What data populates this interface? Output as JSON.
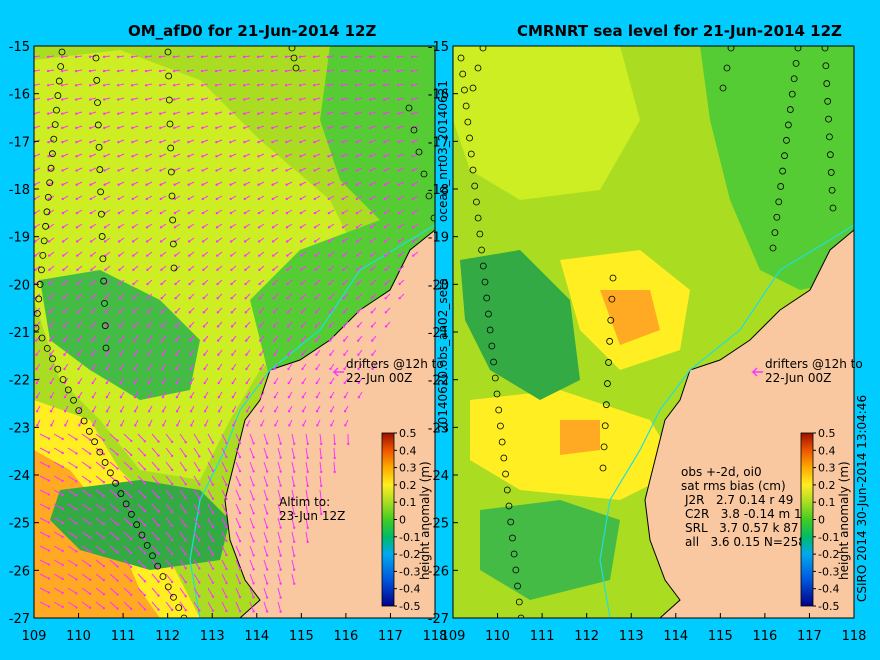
{
  "colors": {
    "background": "#00ccff",
    "land": "#fac8a0",
    "coast": "#000000",
    "vector": "#ff33ff",
    "contour_line": "#22dddd"
  },
  "left_panel": {
    "title": "OM_afD0 for 21-Jun-2014 12Z",
    "drifters_line1": "drifters @12h to",
    "drifters_line2": "22-Jun 00Z",
    "altim_line1": "Altim to:",
    "altim_line2": "23-Jun 12Z",
    "colorbar_label": "height anomaly (m)"
  },
  "right_panel": {
    "title": "CMRNRT sea level  for 21-Jun-2014 12Z",
    "drifters_line1": "drifters @12h to",
    "drifters_line2": "22-Jun 00Z",
    "colorbar_label": "height anomaly (m)",
    "stats_line1": "obs +-2d, oi0",
    "stats_line2": "sat rms bias (cm)",
    "stats_rows": [
      "J2R   2.7 0.14 r 49",
      "C2R   3.8 -0.14 m 12",
      "SRL   3.7 0.57 k 87",
      "all   3.6 0.15 N=258"
    ]
  },
  "side_labels": {
    "between_top": "ocean_nrt03_20140621",
    "between_bottom": "20140620.obs_an02_seta",
    "right_edge": "CSIRO 2014   30-Jun-2014 13:04:46"
  },
  "axes": {
    "x_ticks": [
      "109",
      "110",
      "111",
      "112",
      "113",
      "114",
      "115",
      "116",
      "117",
      "118"
    ],
    "y_ticks": [
      "-15",
      "-16",
      "-17",
      "-18",
      "-19",
      "-20",
      "-21",
      "-22",
      "-23",
      "-24",
      "-25",
      "-26",
      "-27"
    ]
  },
  "colorbar": {
    "ticks": [
      "0.5",
      "0.4",
      "0.3",
      "0.2",
      "0.1",
      "0",
      "-0.1",
      "-0.2",
      "-0.3",
      "-0.4",
      "-0.5"
    ],
    "range": [
      -0.5,
      0.5
    ]
  }
}
